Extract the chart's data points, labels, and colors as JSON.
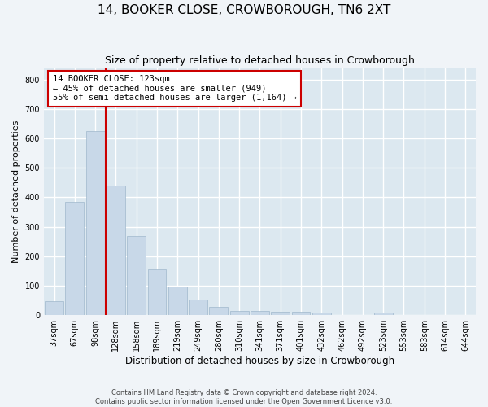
{
  "title": "14, BOOKER CLOSE, CROWBOROUGH, TN6 2XT",
  "subtitle": "Size of property relative to detached houses in Crowborough",
  "xlabel": "Distribution of detached houses by size in Crowborough",
  "ylabel": "Number of detached properties",
  "bar_color": "#c8d8e8",
  "bar_edgecolor": "#a0b8cc",
  "background_color": "#dce8f0",
  "grid_color": "#ffffff",
  "categories": [
    "37sqm",
    "67sqm",
    "98sqm",
    "128sqm",
    "158sqm",
    "189sqm",
    "219sqm",
    "249sqm",
    "280sqm",
    "310sqm",
    "341sqm",
    "371sqm",
    "401sqm",
    "432sqm",
    "462sqm",
    "492sqm",
    "523sqm",
    "553sqm",
    "583sqm",
    "614sqm",
    "644sqm"
  ],
  "values": [
    48,
    385,
    625,
    440,
    268,
    155,
    97,
    52,
    27,
    15,
    15,
    12,
    12,
    10,
    0,
    0,
    8,
    0,
    0,
    0,
    0
  ],
  "vline_x_index": 2.5,
  "annotation_text": "14 BOOKER CLOSE: 123sqm\n← 45% of detached houses are smaller (949)\n55% of semi-detached houses are larger (1,164) →",
  "annotation_box_color": "#ffffff",
  "annotation_border_color": "#cc0000",
  "vline_color": "#cc0000",
  "footer": "Contains HM Land Registry data © Crown copyright and database right 2024.\nContains public sector information licensed under the Open Government Licence v3.0.",
  "ylim": [
    0,
    840
  ],
  "yticks": [
    0,
    100,
    200,
    300,
    400,
    500,
    600,
    700,
    800
  ]
}
